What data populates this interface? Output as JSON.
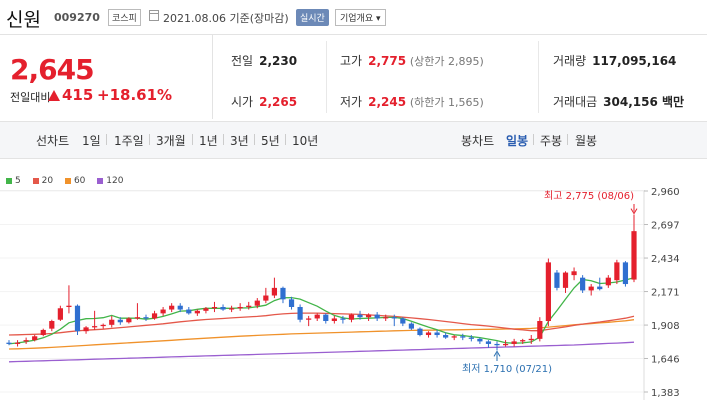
{
  "header": {
    "stock_name": "신원",
    "stock_code": "009270",
    "market": "코스피",
    "date_text": "2021.08.06 기준(장마감)",
    "realtime_label": "실시간",
    "company_label": "기업개요 ▾"
  },
  "summary": {
    "current_price": "2,645",
    "change_label": "전일대비",
    "change_value": "415",
    "change_rate": "+18.61%",
    "prev_close_label": "전일",
    "prev_close": "2,230",
    "high_label": "고가",
    "high": "2,775",
    "upper_limit": "(상한가 2,895)",
    "volume_label": "거래량",
    "volume": "117,095,164",
    "open_label": "시가",
    "open": "2,265",
    "low_label": "저가",
    "low": "2,245",
    "lower_limit": "(하한가 1,565)",
    "amount_label": "거래대금",
    "amount": "304,156 백만"
  },
  "tabs": {
    "line": [
      "선차트",
      "1일",
      "1주일",
      "3개월",
      "1년",
      "3년",
      "5년",
      "10년"
    ],
    "candle": [
      "봉차트",
      "일봉",
      "주봉",
      "월봉"
    ],
    "active_candle": "일봉"
  },
  "colors": {
    "up": "#e4202d",
    "down": "#2f6fd0",
    "ma5": "#42b549",
    "ma20": "#e4584a",
    "ma60": "#f0922b",
    "ma120": "#9a5fd0"
  },
  "chart_data": {
    "type": "candlestick",
    "y_ticks": [
      1383,
      1646,
      1908,
      2171,
      2434,
      2697,
      2960
    ],
    "ylim": [
      1383,
      2960
    ],
    "legend": [
      {
        "label": "5",
        "color": "#42b549"
      },
      {
        "label": "20",
        "color": "#e4584a"
      },
      {
        "label": "60",
        "color": "#f0922b"
      },
      {
        "label": "120",
        "color": "#9a5fd0"
      }
    ],
    "annotations": {
      "high": "최고 2,775 (08/06)",
      "low": "최저 1,710 (07/21)"
    },
    "candles": [
      [
        1770,
        1790,
        1750,
        1760
      ],
      [
        1760,
        1790,
        1740,
        1770
      ],
      [
        1780,
        1810,
        1760,
        1790
      ],
      [
        1790,
        1830,
        1780,
        1820
      ],
      [
        1830,
        1880,
        1820,
        1870
      ],
      [
        1880,
        1950,
        1860,
        1940
      ],
      [
        1950,
        2060,
        1940,
        2040
      ],
      [
        2050,
        2220,
        2000,
        2060
      ],
      [
        2060,
        2070,
        1830,
        1860
      ],
      [
        1860,
        1900,
        1840,
        1890
      ],
      [
        1890,
        2020,
        1870,
        1900
      ],
      [
        1900,
        1920,
        1880,
        1910
      ],
      [
        1910,
        1980,
        1890,
        1950
      ],
      [
        1950,
        1970,
        1910,
        1930
      ],
      [
        1930,
        1970,
        1920,
        1960
      ],
      [
        1960,
        2080,
        1950,
        1970
      ],
      [
        1970,
        1990,
        1940,
        1960
      ],
      [
        1960,
        2020,
        1950,
        2000
      ],
      [
        2000,
        2050,
        1980,
        2030
      ],
      [
        2030,
        2080,
        2010,
        2060
      ],
      [
        2060,
        2080,
        2010,
        2030
      ],
      [
        2030,
        2050,
        1990,
        2000
      ],
      [
        2000,
        2030,
        1980,
        2020
      ],
      [
        2020,
        2050,
        2000,
        2040
      ],
      [
        2040,
        2090,
        2010,
        2050
      ],
      [
        2050,
        2070,
        2020,
        2030
      ],
      [
        2030,
        2060,
        2010,
        2040
      ],
      [
        2040,
        2080,
        2020,
        2050
      ],
      [
        2050,
        2090,
        2030,
        2060
      ],
      [
        2060,
        2120,
        2040,
        2100
      ],
      [
        2100,
        2200,
        2080,
        2140
      ],
      [
        2140,
        2280,
        2120,
        2200
      ],
      [
        2200,
        2210,
        2080,
        2110
      ],
      [
        2110,
        2130,
        2030,
        2050
      ],
      [
        2050,
        2070,
        1930,
        1950
      ],
      [
        1950,
        1980,
        1900,
        1960
      ],
      [
        1960,
        2000,
        1940,
        1990
      ],
      [
        1990,
        2000,
        1920,
        1940
      ],
      [
        1940,
        1980,
        1920,
        1960
      ],
      [
        1960,
        1980,
        1920,
        1950
      ],
      [
        1950,
        2000,
        1930,
        1990
      ],
      [
        1990,
        2020,
        1950,
        1970
      ],
      [
        1970,
        2000,
        1940,
        1990
      ],
      [
        1990,
        2010,
        1940,
        1960
      ],
      [
        1960,
        1990,
        1940,
        1970
      ],
      [
        1970,
        1990,
        1900,
        1960
      ],
      [
        1960,
        1970,
        1900,
        1920
      ],
      [
        1920,
        1930,
        1870,
        1880
      ],
      [
        1880,
        1890,
        1820,
        1830
      ],
      [
        1830,
        1860,
        1810,
        1850
      ],
      [
        1850,
        1870,
        1810,
        1830
      ],
      [
        1830,
        1850,
        1800,
        1810
      ],
      [
        1810,
        1830,
        1790,
        1820
      ],
      [
        1820,
        1840,
        1790,
        1810
      ],
      [
        1810,
        1830,
        1780,
        1800
      ],
      [
        1800,
        1810,
        1760,
        1780
      ],
      [
        1780,
        1790,
        1730,
        1760
      ],
      [
        1760,
        1780,
        1710,
        1750
      ],
      [
        1750,
        1790,
        1740,
        1760
      ],
      [
        1760,
        1800,
        1740,
        1780
      ],
      [
        1780,
        1800,
        1760,
        1790
      ],
      [
        1790,
        1830,
        1760,
        1800
      ],
      [
        1800,
        1970,
        1780,
        1940
      ],
      [
        1940,
        2430,
        1900,
        2400
      ],
      [
        2320,
        2340,
        2180,
        2200
      ],
      [
        2200,
        2330,
        2160,
        2320
      ],
      [
        2300,
        2360,
        2260,
        2330
      ],
      [
        2280,
        2300,
        2160,
        2180
      ],
      [
        2180,
        2230,
        2140,
        2210
      ],
      [
        2210,
        2280,
        2180,
        2190
      ],
      [
        2220,
        2300,
        2200,
        2280
      ],
      [
        2260,
        2420,
        2230,
        2400
      ],
      [
        2400,
        2410,
        2210,
        2230
      ],
      [
        2265,
        2775,
        2245,
        2645
      ]
    ],
    "ma5": [
      1760,
      1768,
      1778,
      1790,
      1808,
      1836,
      1876,
      1926,
      1944,
      1958,
      1960,
      1966,
      1984,
      1962,
      1962,
      1962,
      1954,
      1962,
      1976,
      1996,
      2018,
      2020,
      2032,
      2040,
      2040,
      2040,
      2040,
      2042,
      2044,
      2052,
      2064,
      2100,
      2122,
      2124,
      2112,
      2084,
      2056,
      2018,
      1984,
      1964,
      1956,
      1960,
      1962,
      1964,
      1968,
      1968,
      1960,
      1938,
      1914,
      1892,
      1872,
      1848,
      1832,
      1826,
      1818,
      1810,
      1798,
      1786,
      1770,
      1766,
      1768,
      1776,
      1814,
      1938,
      2022,
      2112,
      2200,
      2266,
      2256,
      2234,
      2238,
      2246,
      2262,
      2280
    ],
    "ma20": [
      1830,
      1832,
      1834,
      1836,
      1838,
      1842,
      1848,
      1856,
      1862,
      1868,
      1872,
      1876,
      1882,
      1888,
      1894,
      1900,
      1906,
      1912,
      1918,
      1926,
      1934,
      1940,
      1946,
      1952,
      1956,
      1960,
      1964,
      1968,
      1972,
      1976,
      1982,
      1990,
      1996,
      2000,
      2002,
      2002,
      2002,
      2000,
      1998,
      1996,
      1994,
      1992,
      1988,
      1984,
      1980,
      1976,
      1970,
      1964,
      1958,
      1952,
      1944,
      1936,
      1928,
      1920,
      1912,
      1906,
      1900,
      1892,
      1884,
      1876,
      1870,
      1864,
      1864,
      1874,
      1884,
      1894,
      1906,
      1916,
      1924,
      1932,
      1942,
      1952,
      1962,
      1978
    ],
    "ma60": [
      1720,
      1722,
      1724,
      1727,
      1730,
      1733,
      1737,
      1741,
      1745,
      1749,
      1753,
      1757,
      1761,
      1765,
      1769,
      1773,
      1777,
      1781,
      1785,
      1789,
      1793,
      1797,
      1801,
      1805,
      1809,
      1813,
      1817,
      1821,
      1824,
      1827,
      1830,
      1833,
      1836,
      1839,
      1841,
      1843,
      1845,
      1847,
      1849,
      1851,
      1853,
      1855,
      1857,
      1859,
      1861,
      1863,
      1865,
      1866,
      1867,
      1868,
      1869,
      1870,
      1871,
      1872,
      1873,
      1874,
      1875,
      1876,
      1877,
      1878,
      1880,
      1882,
      1886,
      1892,
      1898,
      1904,
      1910,
      1915,
      1920,
      1925,
      1930,
      1936,
      1942,
      1950
    ],
    "ma120": [
      1620,
      1622,
      1624,
      1626,
      1628,
      1630,
      1632,
      1634,
      1636,
      1638,
      1640,
      1642,
      1644,
      1646,
      1648,
      1650,
      1652,
      1654,
      1656,
      1658,
      1660,
      1662,
      1664,
      1666,
      1668,
      1670,
      1672,
      1674,
      1676,
      1678,
      1680,
      1682,
      1684,
      1686,
      1688,
      1690,
      1692,
      1694,
      1696,
      1698,
      1700,
      1702,
      1704,
      1706,
      1708,
      1710,
      1712,
      1714,
      1716,
      1718,
      1720,
      1722,
      1724,
      1726,
      1728,
      1730,
      1732,
      1734,
      1736,
      1738,
      1740,
      1742,
      1744,
      1746,
      1748,
      1750,
      1752,
      1755,
      1758,
      1761,
      1764,
      1767,
      1770,
      1774
    ]
  }
}
